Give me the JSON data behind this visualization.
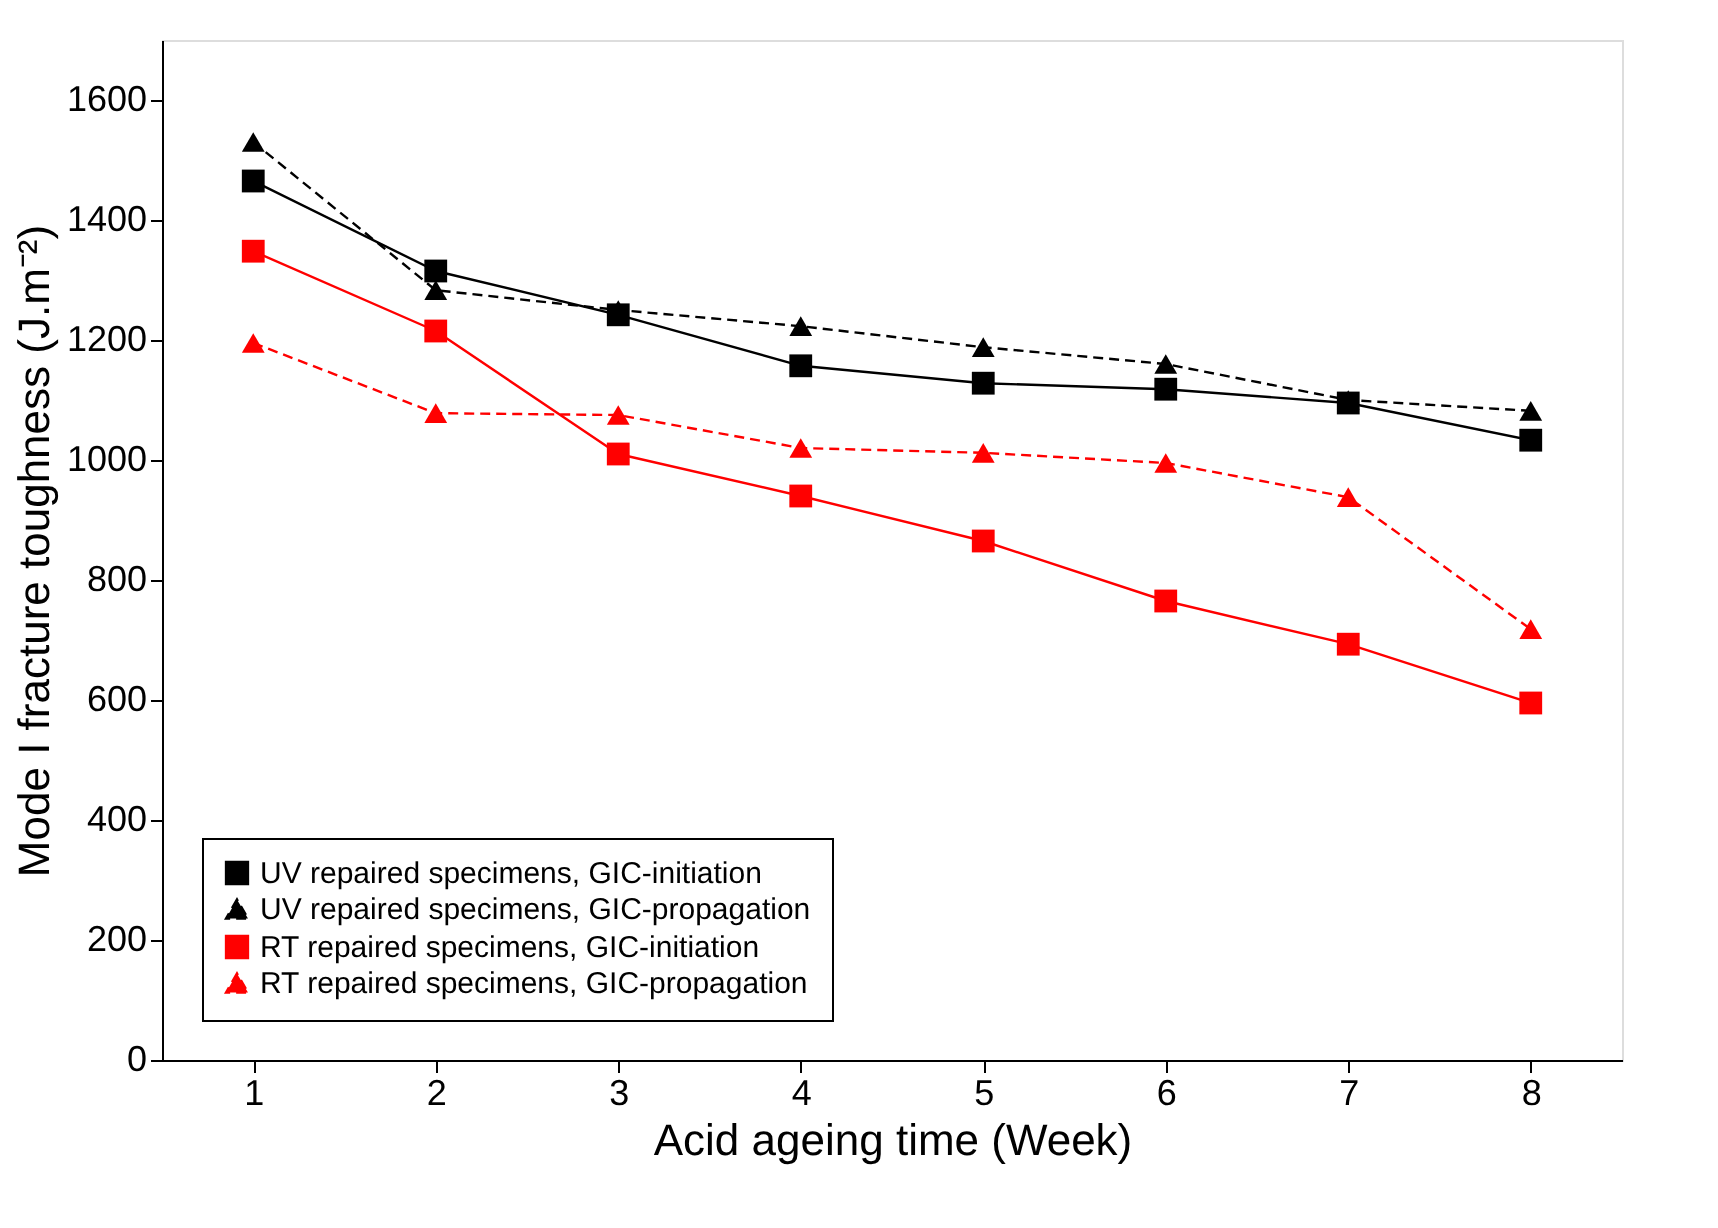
{
  "chart_data": {
    "type": "line",
    "xlabel": "Acid ageing time (Week)",
    "ylabel": "Mode I fracture toughness (J.m⁻²)",
    "x": [
      1,
      2,
      3,
      4,
      5,
      6,
      7,
      8
    ],
    "series": [
      {
        "name": "UV repaired specimens, GIC-initiation",
        "color": "#000000",
        "marker": "square",
        "line_style": "solid",
        "values": [
          1465,
          1315,
          1242,
          1157,
          1128,
          1118,
          1095,
          1033
        ]
      },
      {
        "name": "UV repaired specimens, GIC-propagation",
        "color": "#000000",
        "marker": "triangle",
        "line_style": "dashed",
        "values": [
          1530,
          1283,
          1250,
          1223,
          1188,
          1160,
          1100,
          1082
        ]
      },
      {
        "name": "RT repaired specimens, GIC-initiation",
        "color": "#ff0000",
        "marker": "square",
        "line_style": "solid",
        "values": [
          1348,
          1215,
          1010,
          940,
          865,
          765,
          693,
          595
        ]
      },
      {
        "name": "RT repaired specimens, GIC-propagation",
        "color": "#ff0000",
        "marker": "triangle",
        "line_style": "dashed",
        "values": [
          1195,
          1078,
          1075,
          1020,
          1012,
          995,
          938,
          718
        ]
      }
    ],
    "xlim": [
      0.5,
      8.5
    ],
    "ylim": [
      0,
      1700
    ],
    "xticks": [
      1,
      2,
      3,
      4,
      5,
      6,
      7,
      8
    ],
    "yticks": [
      0,
      200,
      400,
      600,
      800,
      1000,
      1200,
      1400,
      1600
    ],
    "grid": false,
    "legend": "bottom left"
  }
}
